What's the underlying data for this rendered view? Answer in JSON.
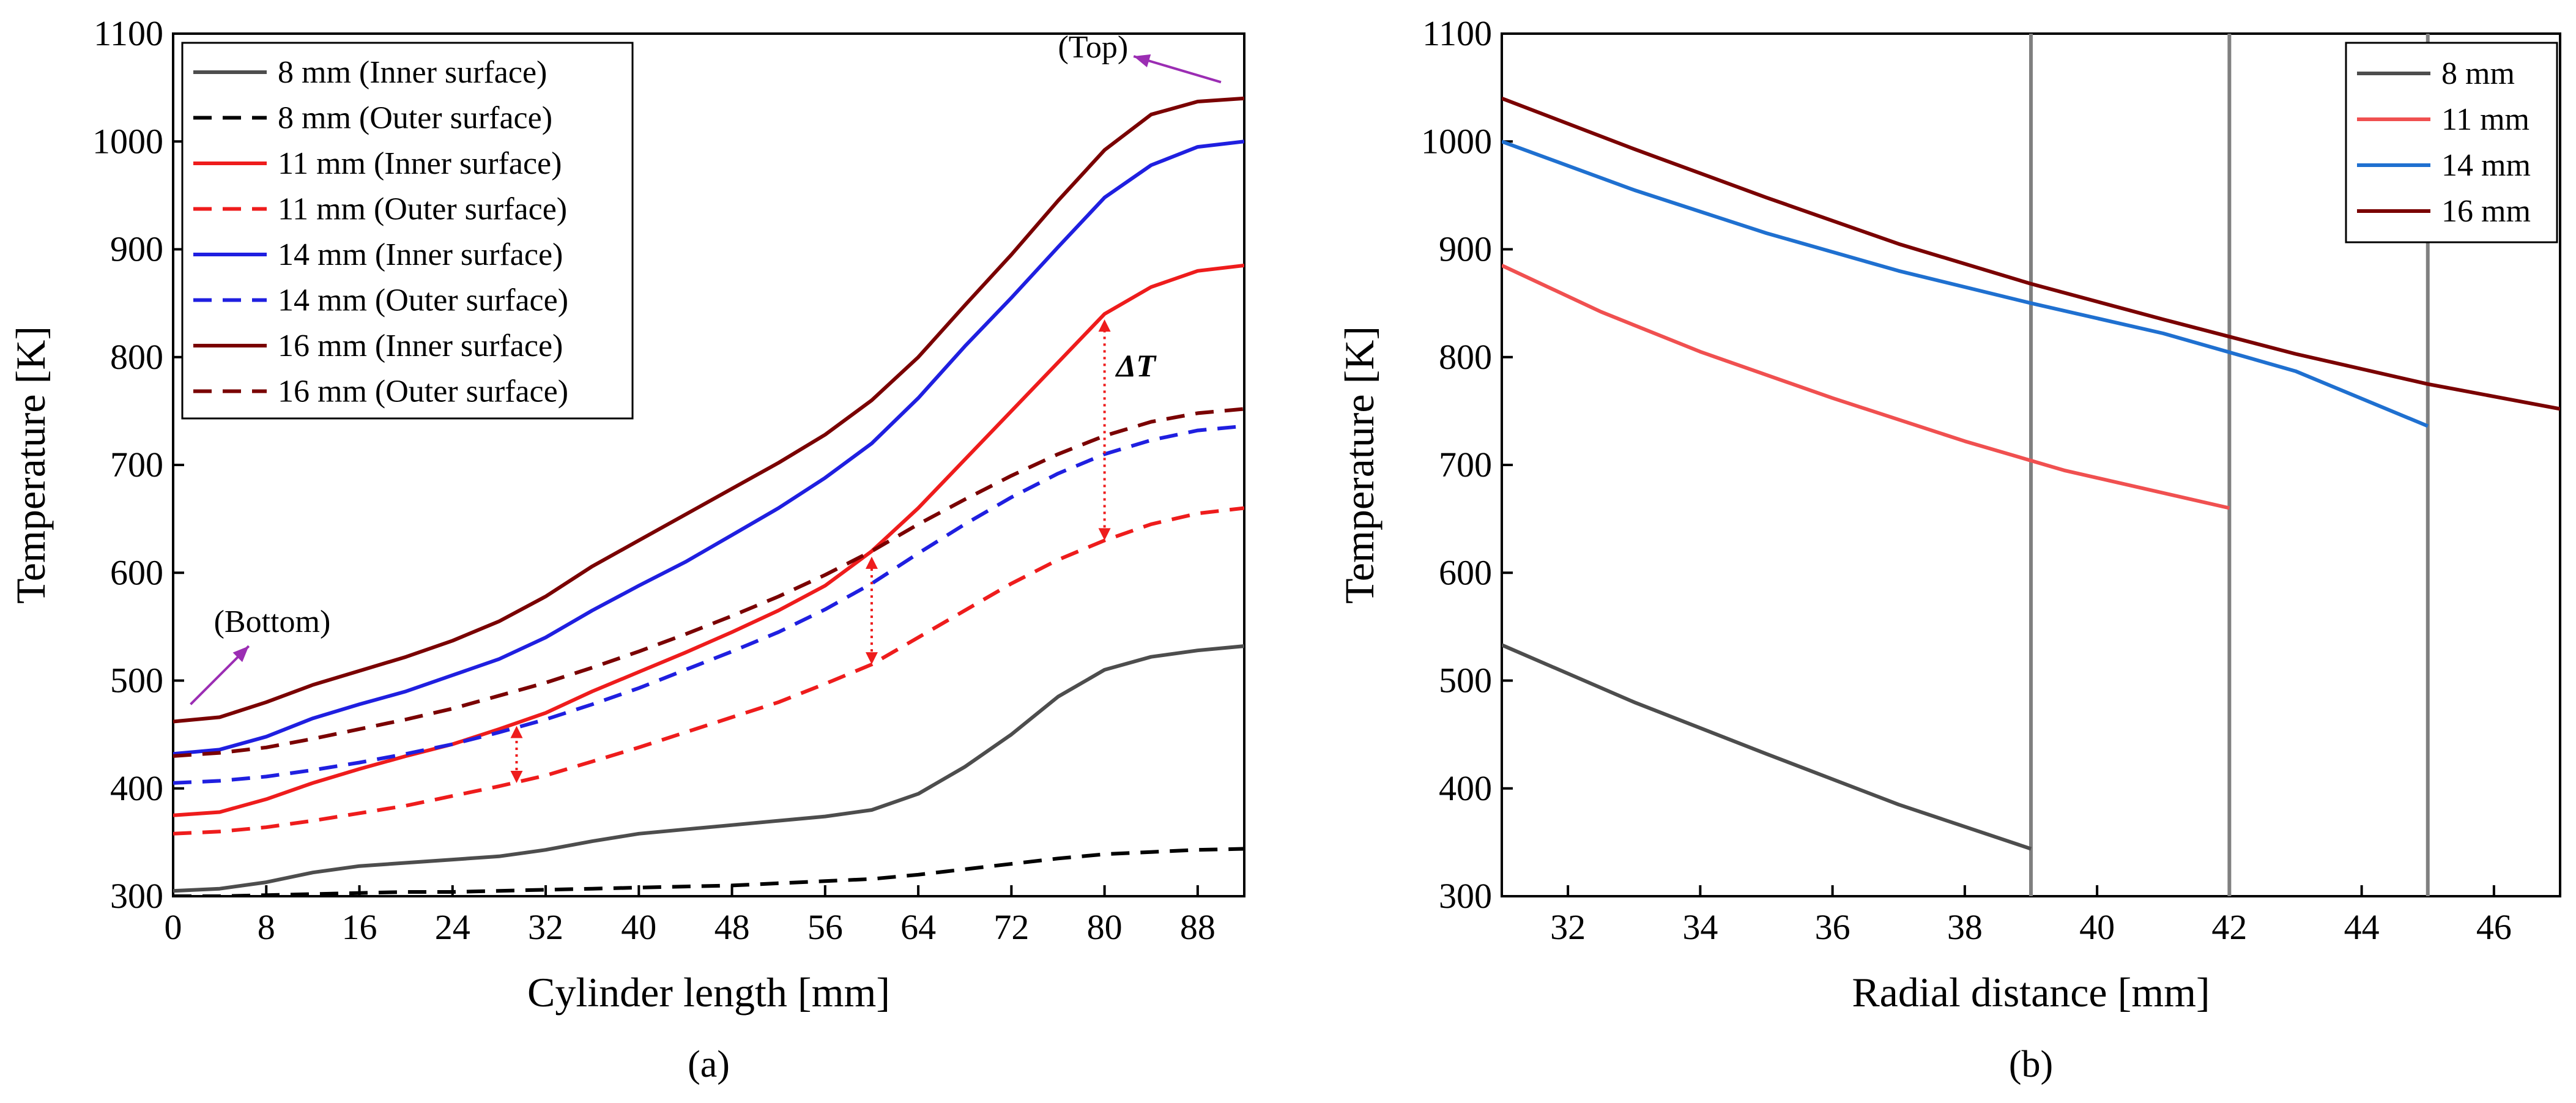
{
  "chart_data": [
    {
      "type": "line",
      "panel": "(a)",
      "xlabel": "Cylinder length [mm]",
      "ylabel": "Temperature [K]",
      "xlim": [
        0,
        92
      ],
      "ylim": [
        300,
        1100
      ],
      "xticks": [
        0,
        8,
        16,
        24,
        32,
        40,
        48,
        56,
        64,
        72,
        80,
        88
      ],
      "yticks": [
        300,
        400,
        500,
        600,
        700,
        800,
        900,
        1000,
        1100
      ],
      "legend_position": "top-left",
      "series": [
        {
          "name": "8 mm (Inner surface)",
          "color": "#4d4d4d",
          "dash": "solid",
          "x": [
            0,
            4,
            8,
            12,
            16,
            20,
            24,
            28,
            32,
            36,
            40,
            44,
            48,
            52,
            56,
            60,
            64,
            68,
            72,
            76,
            80,
            84,
            88,
            92
          ],
          "y": [
            305,
            307,
            313,
            322,
            328,
            331,
            334,
            337,
            343,
            351,
            358,
            362,
            366,
            370,
            374,
            380,
            395,
            420,
            450,
            485,
            510,
            522,
            528,
            532
          ]
        },
        {
          "name": "8 mm (Outer surface)",
          "color": "#000000",
          "dash": "dashed",
          "x": [
            0,
            4,
            8,
            12,
            16,
            20,
            24,
            28,
            32,
            36,
            40,
            44,
            48,
            52,
            56,
            60,
            64,
            68,
            72,
            76,
            80,
            84,
            88,
            92
          ],
          "y": [
            300,
            300,
            301,
            302,
            303,
            304,
            304,
            305,
            306,
            307,
            308,
            309,
            310,
            312,
            314,
            316,
            320,
            325,
            330,
            335,
            339,
            341,
            343,
            344
          ]
        },
        {
          "name": "11 mm (Inner surface)",
          "color": "#ee1c1c",
          "dash": "solid",
          "x": [
            0,
            4,
            8,
            12,
            16,
            20,
            24,
            28,
            32,
            36,
            40,
            44,
            48,
            52,
            56,
            60,
            64,
            68,
            72,
            76,
            80,
            84,
            88,
            92
          ],
          "y": [
            375,
            378,
            390,
            405,
            418,
            430,
            441,
            455,
            470,
            490,
            508,
            526,
            545,
            565,
            588,
            620,
            660,
            705,
            750,
            795,
            840,
            865,
            880,
            885
          ]
        },
        {
          "name": "11 mm (Outer surface)",
          "color": "#ee1c1c",
          "dash": "dashed",
          "x": [
            0,
            4,
            8,
            12,
            16,
            20,
            24,
            28,
            32,
            36,
            40,
            44,
            48,
            52,
            56,
            60,
            64,
            68,
            72,
            76,
            80,
            84,
            88,
            92
          ],
          "y": [
            358,
            360,
            364,
            370,
            377,
            384,
            393,
            402,
            412,
            425,
            438,
            452,
            466,
            480,
            497,
            515,
            540,
            565,
            590,
            612,
            630,
            645,
            655,
            660
          ]
        },
        {
          "name": "14 mm (Inner surface)",
          "color": "#1f1fe0",
          "dash": "solid",
          "x": [
            0,
            4,
            8,
            12,
            16,
            20,
            24,
            28,
            32,
            36,
            40,
            44,
            48,
            52,
            56,
            60,
            64,
            68,
            72,
            76,
            80,
            84,
            88,
            92
          ],
          "y": [
            432,
            436,
            448,
            465,
            478,
            490,
            505,
            520,
            540,
            565,
            588,
            610,
            635,
            660,
            688,
            720,
            762,
            810,
            855,
            902,
            948,
            978,
            995,
            1000
          ]
        },
        {
          "name": "14 mm (Outer surface)",
          "color": "#1f1fe0",
          "dash": "dashed",
          "x": [
            0,
            4,
            8,
            12,
            16,
            20,
            24,
            28,
            32,
            36,
            40,
            44,
            48,
            52,
            56,
            60,
            64,
            68,
            72,
            76,
            80,
            84,
            88,
            92
          ],
          "y": [
            405,
            407,
            411,
            417,
            424,
            432,
            441,
            452,
            464,
            478,
            493,
            510,
            527,
            545,
            566,
            590,
            618,
            645,
            670,
            692,
            710,
            723,
            732,
            736
          ]
        },
        {
          "name": "16 mm (Inner surface)",
          "color": "#7a0000",
          "dash": "solid",
          "x": [
            0,
            4,
            8,
            12,
            16,
            20,
            24,
            28,
            32,
            36,
            40,
            44,
            48,
            52,
            56,
            60,
            64,
            68,
            72,
            76,
            80,
            84,
            88,
            92
          ],
          "y": [
            462,
            466,
            480,
            496,
            509,
            522,
            537,
            555,
            578,
            606,
            630,
            654,
            678,
            702,
            728,
            760,
            800,
            848,
            895,
            945,
            992,
            1025,
            1037,
            1040
          ]
        },
        {
          "name": "16 mm (Outer surface)",
          "color": "#7a0000",
          "dash": "dashed",
          "x": [
            0,
            4,
            8,
            12,
            16,
            20,
            24,
            28,
            32,
            36,
            40,
            44,
            48,
            52,
            56,
            60,
            64,
            68,
            72,
            76,
            80,
            84,
            88,
            92
          ],
          "y": [
            430,
            433,
            438,
            446,
            455,
            464,
            474,
            486,
            498,
            512,
            527,
            543,
            560,
            578,
            598,
            620,
            645,
            668,
            690,
            710,
            727,
            740,
            748,
            752
          ]
        }
      ],
      "annotations": [
        {
          "text": "(Top)",
          "x": 76,
          "y": 1078
        },
        {
          "text": "(Bottom)",
          "x": 3.5,
          "y": 545
        },
        {
          "text": "ΔT",
          "x": 81,
          "y": 782,
          "color": "#ee1c1c"
        }
      ],
      "delta_t_markers": [
        {
          "x": 29.5,
          "y1": 405,
          "y2": 458
        },
        {
          "x": 60,
          "y1": 515,
          "y2": 615
        },
        {
          "x": 80,
          "y1": 630,
          "y2": 835
        }
      ],
      "arrows": [
        {
          "label": "top-arrow",
          "from": [
            90,
            1055
          ],
          "to": [
            82.5,
            1079
          ]
        },
        {
          "label": "bottom-arrow",
          "from": [
            1.5,
            478
          ],
          "to": [
            6.5,
            532
          ]
        }
      ]
    },
    {
      "type": "line",
      "panel": "(b)",
      "xlabel": "Radial distance [mm]",
      "ylabel": "Temperature [K]",
      "xlim": [
        31,
        47
      ],
      "ylim": [
        300,
        1100
      ],
      "xticks": [
        32,
        34,
        36,
        38,
        40,
        42,
        44,
        46
      ],
      "yticks": [
        300,
        400,
        500,
        600,
        700,
        800,
        900,
        1000,
        1100
      ],
      "legend_position": "top-right",
      "boundary_lines_x": [
        39,
        42,
        45
      ],
      "series": [
        {
          "name": "8 mm",
          "color": "#4d4d4d",
          "x": [
            31,
            33,
            35,
            37,
            39
          ],
          "y": [
            533,
            480,
            432,
            385,
            344
          ]
        },
        {
          "name": "11 mm",
          "color": "#f05050",
          "x": [
            31,
            32.5,
            34,
            36,
            38,
            39.5,
            42
          ],
          "y": [
            885,
            842,
            805,
            762,
            722,
            695,
            660
          ]
        },
        {
          "name": "14 mm",
          "color": "#1f70d0",
          "x": [
            31,
            33,
            35,
            37,
            39,
            41,
            43,
            45
          ],
          "y": [
            1000,
            955,
            915,
            880,
            850,
            822,
            787,
            736
          ]
        },
        {
          "name": "16 mm",
          "color": "#7a0000",
          "x": [
            31,
            33,
            35,
            37,
            39,
            41,
            43,
            45,
            47
          ],
          "y": [
            1040,
            993,
            948,
            905,
            868,
            835,
            803,
            775,
            752
          ]
        }
      ]
    }
  ],
  "captions": {
    "a": "(a)",
    "b": "(b)"
  }
}
